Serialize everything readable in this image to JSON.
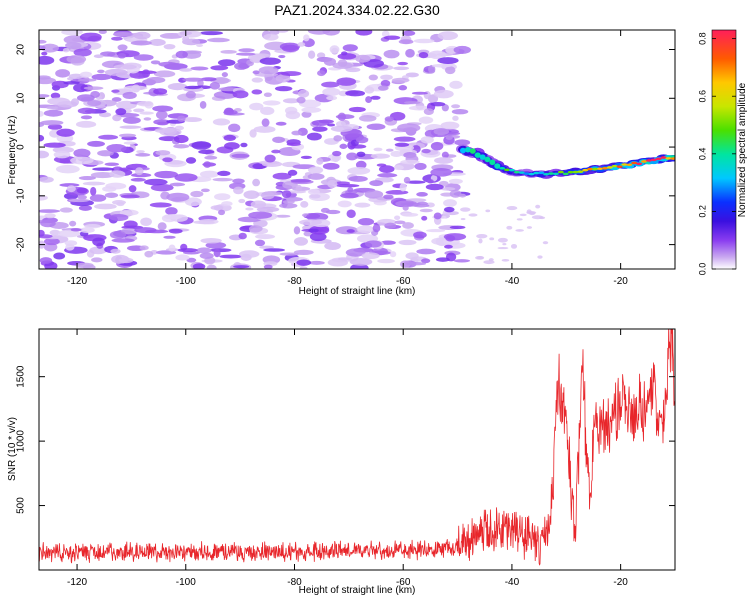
{
  "title": "PAZ1.2024.334.02.22.G30",
  "colors": {
    "snr_line": "#e8262b",
    "frame": "#000000",
    "colormap": [
      "#e8e0f6",
      "#c9a8f0",
      "#a56ae6",
      "#7a2be0",
      "#3a0fd6",
      "#0a20ff",
      "#00bfff",
      "#00e5c9",
      "#33e04f",
      "#b8e600",
      "#ffd200",
      "#ff7a00",
      "#ff1a10",
      "#ff1f5a"
    ]
  },
  "chart_data": [
    {
      "type": "heatmap",
      "title": "PAZ1.2024.334.02.22.G30",
      "xlabel": "Height of straight line (km)",
      "ylabel": "Frequency (Hz)",
      "xlim": [
        -127,
        -10
      ],
      "ylim": [
        -25,
        24
      ],
      "x_ticks": [
        -120,
        -100,
        -80,
        -60,
        -40,
        -20
      ],
      "y_ticks": [
        -20,
        -10,
        0,
        10,
        20
      ],
      "colorbar": {
        "label": "Normalized spectral amplitude",
        "range": [
          0.0,
          0.83
        ],
        "ticks": [
          0.0,
          0.2,
          0.4,
          0.6,
          0.8
        ]
      },
      "noise_region": {
        "x": [
          -127,
          -49
        ],
        "y": [
          -25,
          24
        ],
        "amplitude": [
          0.02,
          0.12
        ]
      },
      "signal_ridge": {
        "x": [
          -49,
          -46,
          -44,
          -42,
          -40,
          -37,
          -34,
          -30,
          -26,
          -22,
          -18,
          -14,
          -10
        ],
        "frequency": [
          -0.5,
          -1.5,
          -3.0,
          -4.2,
          -5.0,
          -5.4,
          -5.6,
          -5.2,
          -4.8,
          -4.2,
          -3.6,
          -2.8,
          -2.0
        ],
        "amplitude": [
          0.35,
          0.45,
          0.4,
          0.5,
          0.42,
          0.35,
          0.4,
          0.55,
          0.65,
          0.72,
          0.76,
          0.8,
          0.83
        ]
      }
    },
    {
      "type": "line",
      "xlabel": "Height of straight line (km)",
      "ylabel": "SNR (10 * v/v)",
      "xlim": [
        -127,
        -10
      ],
      "ylim": [
        0,
        1870
      ],
      "x_ticks": [
        -120,
        -100,
        -80,
        -60,
        -40,
        -20
      ],
      "y_ticks": [
        500,
        1000,
        1500
      ],
      "series": [
        {
          "x": [
            -127,
            -110,
            -90,
            -70,
            -55,
            -50,
            -48,
            -45,
            -43,
            -41,
            -39,
            -37,
            -35,
            -33,
            -32,
            -31.5,
            -30.5,
            -30,
            -29,
            -28.5,
            -28,
            -27,
            -25.5,
            -25,
            -24,
            -23,
            -22,
            -21,
            -20,
            -19.5,
            -19,
            -18,
            -17.5,
            -16.5,
            -16,
            -15,
            -14,
            -13,
            -12,
            -11,
            -10.5,
            -10
          ],
          "y": [
            130,
            140,
            135,
            150,
            160,
            170,
            260,
            300,
            280,
            330,
            290,
            260,
            180,
            330,
            1000,
            1450,
            1250,
            1100,
            600,
            250,
            700,
            1500,
            450,
            1100,
            1150,
            1050,
            1150,
            1200,
            1250,
            1500,
            1150,
            1300,
            1150,
            1300,
            1200,
            1250,
            1450,
            1150,
            1200,
            1850,
            1700,
            1150
          ]
        }
      ]
    }
  ]
}
